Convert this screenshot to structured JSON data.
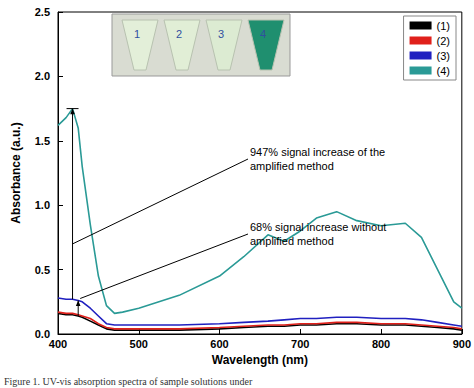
{
  "chart_data": {
    "type": "line",
    "x_label": "Wavelength (nm)",
    "y_label": "Absorbance (a.u.)",
    "caption": "Figure 1. UV-vis absorption spectra of sample solutions under",
    "inset_labels": [
      "1",
      "2",
      "3",
      "4"
    ],
    "annotations": [
      {
        "text": "947% signal increase of the amplified method"
      },
      {
        "text": "68% signal increase without amplified method"
      }
    ],
    "xlim": [
      400,
      900
    ],
    "xticks": [
      400,
      500,
      600,
      700,
      800,
      900
    ],
    "ylim": [
      0,
      2.5
    ],
    "yticks": [
      {
        "value": 0,
        "label": "0.0"
      },
      0.5,
      {
        "value": 1,
        "label": "1.0"
      },
      1.5,
      {
        "value": 2,
        "label": "2.0"
      },
      2.5
    ],
    "grid": false,
    "legend": "upper right",
    "x": [
      400,
      410,
      418,
      425,
      430,
      440,
      450,
      460,
      470,
      480,
      500,
      550,
      600,
      630,
      660,
      680,
      700,
      720,
      745,
      770,
      800,
      830,
      850,
      870,
      890,
      900
    ],
    "series": [
      {
        "name": "(1)",
        "color": "#000000",
        "values": [
          0.16,
          0.15,
          0.15,
          0.14,
          0.13,
          0.1,
          0.07,
          0.04,
          0.03,
          0.03,
          0.03,
          0.03,
          0.04,
          0.05,
          0.06,
          0.06,
          0.07,
          0.07,
          0.08,
          0.08,
          0.07,
          0.07,
          0.06,
          0.05,
          0.04,
          0.03
        ]
      },
      {
        "name": "(2)",
        "color": "#e0201b",
        "values": [
          0.17,
          0.16,
          0.16,
          0.15,
          0.14,
          0.12,
          0.08,
          0.05,
          0.04,
          0.04,
          0.04,
          0.04,
          0.05,
          0.06,
          0.07,
          0.07,
          0.08,
          0.08,
          0.09,
          0.09,
          0.08,
          0.08,
          0.07,
          0.06,
          0.05,
          0.04
        ]
      },
      {
        "name": "(3)",
        "color": "#2020c0",
        "values": [
          0.28,
          0.27,
          0.27,
          0.26,
          0.25,
          0.2,
          0.14,
          0.08,
          0.07,
          0.07,
          0.07,
          0.07,
          0.08,
          0.09,
          0.1,
          0.11,
          0.12,
          0.12,
          0.13,
          0.13,
          0.12,
          0.12,
          0.11,
          0.09,
          0.07,
          0.06
        ]
      },
      {
        "name": "(4)",
        "color": "#2a9a96",
        "values": [
          1.62,
          1.68,
          1.75,
          1.6,
          1.3,
          0.85,
          0.45,
          0.22,
          0.16,
          0.17,
          0.2,
          0.3,
          0.45,
          0.6,
          0.77,
          0.72,
          0.8,
          0.9,
          0.95,
          0.88,
          0.84,
          0.86,
          0.75,
          0.5,
          0.25,
          0.2
        ]
      }
    ]
  }
}
